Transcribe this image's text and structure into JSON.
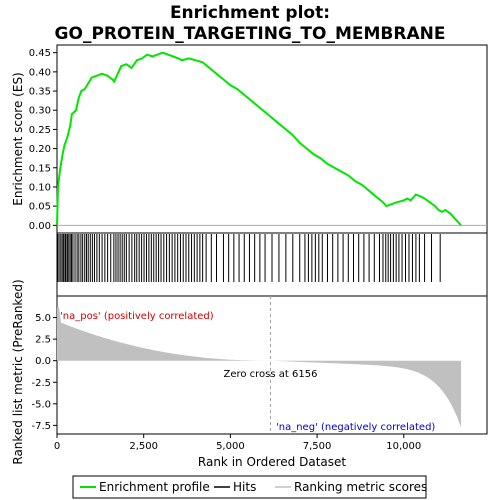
{
  "chart_data": {
    "type": "line",
    "title_line1": "Enrichment plot:",
    "title_line2": "GO_PROTEIN_TARGETING_TO_MEMBRANE",
    "xlabel": "Rank in Ordered Dataset",
    "ylabel_top": "Enrichment score (ES)",
    "ylabel_bottom": "Ranked list metric (PreRanked)",
    "x_range": [
      0,
      12400
    ],
    "x_ticks": [
      0,
      2500,
      5000,
      7500,
      10000
    ],
    "x_tick_labels": [
      "0",
      "2,500",
      "5,000",
      "7,500",
      "10,000"
    ],
    "es_range": [
      -0.02,
      0.47
    ],
    "es_ticks": [
      0.0,
      0.05,
      0.1,
      0.15,
      0.2,
      0.25,
      0.3,
      0.35,
      0.4,
      0.45
    ],
    "es_tick_labels": [
      "0.00",
      "0.05",
      "0.10",
      "0.15",
      "0.20",
      "0.25",
      "0.30",
      "0.35",
      "0.40",
      "0.45"
    ],
    "metric_range": [
      -8.5,
      7.5
    ],
    "metric_ticks": [
      5,
      2.5,
      0,
      -2.5,
      -5,
      -7.5
    ],
    "metric_tick_labels": [
      "5.0",
      "2.5",
      "0.0",
      "-2.5",
      "-5.0",
      "-7.5"
    ],
    "zero_cross_rank": 6156,
    "zero_cross_label": "Zero cross at 6156",
    "pos_label": "'na_pos' (positively correlated)",
    "neg_label": "'na_neg' (negatively correlated)",
    "enrichment_profile": [
      [
        0,
        0.0
      ],
      [
        30,
        0.1
      ],
      [
        80,
        0.14
      ],
      [
        150,
        0.18
      ],
      [
        220,
        0.21
      ],
      [
        300,
        0.23
      ],
      [
        380,
        0.26
      ],
      [
        430,
        0.29
      ],
      [
        550,
        0.3
      ],
      [
        620,
        0.33
      ],
      [
        700,
        0.35
      ],
      [
        800,
        0.355
      ],
      [
        900,
        0.37
      ],
      [
        1000,
        0.385
      ],
      [
        1150,
        0.39
      ],
      [
        1300,
        0.395
      ],
      [
        1450,
        0.39
      ],
      [
        1600,
        0.38
      ],
      [
        1650,
        0.375
      ],
      [
        1750,
        0.395
      ],
      [
        1850,
        0.415
      ],
      [
        2000,
        0.42
      ],
      [
        2150,
        0.41
      ],
      [
        2300,
        0.43
      ],
      [
        2450,
        0.435
      ],
      [
        2600,
        0.445
      ],
      [
        2750,
        0.44
      ],
      [
        2900,
        0.445
      ],
      [
        3050,
        0.45
      ],
      [
        3200,
        0.445
      ],
      [
        3350,
        0.44
      ],
      [
        3500,
        0.435
      ],
      [
        3600,
        0.43
      ],
      [
        3800,
        0.435
      ],
      [
        4000,
        0.43
      ],
      [
        4200,
        0.425
      ],
      [
        4400,
        0.41
      ],
      [
        4600,
        0.395
      ],
      [
        4800,
        0.38
      ],
      [
        5000,
        0.365
      ],
      [
        5200,
        0.355
      ],
      [
        5400,
        0.34
      ],
      [
        5600,
        0.325
      ],
      [
        5800,
        0.31
      ],
      [
        6000,
        0.295
      ],
      [
        6200,
        0.28
      ],
      [
        6400,
        0.265
      ],
      [
        6600,
        0.25
      ],
      [
        6800,
        0.235
      ],
      [
        7000,
        0.215
      ],
      [
        7200,
        0.2
      ],
      [
        7400,
        0.185
      ],
      [
        7600,
        0.175
      ],
      [
        7800,
        0.16
      ],
      [
        8000,
        0.15
      ],
      [
        8200,
        0.14
      ],
      [
        8400,
        0.13
      ],
      [
        8600,
        0.115
      ],
      [
        8800,
        0.105
      ],
      [
        9000,
        0.09
      ],
      [
        9200,
        0.075
      ],
      [
        9400,
        0.06
      ],
      [
        9500,
        0.05
      ],
      [
        9650,
        0.055
      ],
      [
        9800,
        0.06
      ],
      [
        10000,
        0.065
      ],
      [
        10100,
        0.07
      ],
      [
        10200,
        0.065
      ],
      [
        10350,
        0.08
      ],
      [
        10500,
        0.075
      ],
      [
        10600,
        0.07
      ],
      [
        10750,
        0.06
      ],
      [
        10900,
        0.05
      ],
      [
        11000,
        0.04
      ],
      [
        11100,
        0.035
      ],
      [
        11200,
        0.04
      ],
      [
        11350,
        0.03
      ],
      [
        11500,
        0.015
      ],
      [
        11600,
        0.005
      ],
      [
        11650,
        0.0
      ]
    ],
    "hits": [
      20,
      60,
      110,
      150,
      190,
      230,
      260,
      300,
      340,
      380,
      420,
      460,
      520,
      580,
      630,
      690,
      740,
      800,
      850,
      900,
      960,
      1020,
      1080,
      1150,
      1220,
      1300,
      1380,
      1460,
      1550,
      1640,
      1700,
      1760,
      1820,
      1880,
      1940,
      2000,
      2080,
      2160,
      2240,
      2300,
      2370,
      2440,
      2510,
      2580,
      2650,
      2720,
      2790,
      2860,
      2930,
      3000,
      3080,
      3160,
      3240,
      3320,
      3400,
      3480,
      3560,
      3640,
      3720,
      3800,
      3880,
      3960,
      4040,
      4120,
      4200,
      4300,
      4450,
      4600,
      4800,
      4950,
      5100,
      5250,
      5400,
      5550,
      5700,
      5850,
      6000,
      6200,
      6400,
      6600,
      6800,
      7000,
      7150,
      7250,
      7350,
      7450,
      7550,
      7650,
      7800,
      7950,
      8100,
      8250,
      8400,
      8550,
      8700,
      8850,
      9000,
      9150,
      9300,
      9400,
      9480,
      9550,
      9620,
      9700,
      9780,
      9860,
      9950,
      10050,
      10150,
      10250,
      10350,
      10450,
      10600,
      10800,
      11050
    ]
  },
  "legend": {
    "items": [
      {
        "label": "Enrichment profile",
        "color": "#00e600"
      },
      {
        "label": "Hits",
        "color": "#000000"
      },
      {
        "label": "Ranking metric scores",
        "color": "#c0c0c0"
      }
    ]
  }
}
